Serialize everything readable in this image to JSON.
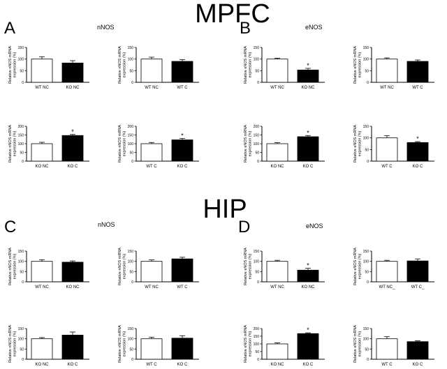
{
  "titles": {
    "top": "MPFC",
    "bottom": "HIP"
  },
  "panels": [
    {
      "letter": "A",
      "gene": "nNOS"
    },
    {
      "letter": "B",
      "gene": "eNOS"
    },
    {
      "letter": "C",
      "gene": "nNOS"
    },
    {
      "letter": "D",
      "gene": "eNOS"
    }
  ],
  "chart_data": [
    {
      "type": "bar",
      "region": "MPFC",
      "panel": "A",
      "ylabel": "Relative nNOS mRNA expression (%)",
      "ylim": [
        0,
        150
      ],
      "yticks": [
        "0",
        "50",
        "100",
        "150"
      ],
      "categories": [
        "WT NC",
        "KO NC"
      ],
      "values": [
        100,
        83
      ],
      "errors": [
        10,
        10
      ],
      "colors": [
        "#ffffff",
        "#000000"
      ],
      "significant": [
        false,
        false
      ]
    },
    {
      "type": "bar",
      "region": "MPFC",
      "panel": "A",
      "ylabel": "Relative nNOS mRNA expression (%)",
      "ylim": [
        0,
        150
      ],
      "yticks": [
        "0",
        "50",
        "100",
        "150"
      ],
      "categories": [
        "WT NC",
        "WT C"
      ],
      "values": [
        100,
        90
      ],
      "errors": [
        8,
        8
      ],
      "colors": [
        "#ffffff",
        "#000000"
      ],
      "significant": [
        false,
        false
      ]
    },
    {
      "type": "bar",
      "region": "MPFC",
      "panel": "A",
      "ylabel": "Relative nNOS mRNA expression (%)",
      "ylim": [
        0,
        200
      ],
      "yticks": [
        "0",
        "50",
        "100",
        "150",
        "200"
      ],
      "categories": [
        "KO NC",
        "KO C"
      ],
      "values": [
        100,
        147
      ],
      "errors": [
        8,
        6
      ],
      "colors": [
        "#ffffff",
        "#000000"
      ],
      "significant": [
        false,
        true
      ]
    },
    {
      "type": "bar",
      "region": "MPFC",
      "panel": "A",
      "ylabel": "Relative nNOS mRNA expression (%)",
      "ylim": [
        0,
        200
      ],
      "yticks": [
        "0",
        "50",
        "100",
        "150",
        "200"
      ],
      "categories": [
        "WT C",
        "KO C"
      ],
      "values": [
        100,
        122
      ],
      "errors": [
        7,
        8
      ],
      "colors": [
        "#ffffff",
        "#000000"
      ],
      "significant": [
        false,
        true
      ]
    },
    {
      "type": "bar",
      "region": "MPFC",
      "panel": "B",
      "ylabel": "Relative eNOS mRNA expression (%)",
      "ylim": [
        0,
        150
      ],
      "yticks": [
        "0",
        "50",
        "100",
        "150"
      ],
      "categories": [
        "WT NC",
        "KO NC"
      ],
      "values": [
        100,
        53
      ],
      "errors": [
        4,
        7
      ],
      "colors": [
        "#ffffff",
        "#000000"
      ],
      "significant": [
        false,
        true
      ]
    },
    {
      "type": "bar",
      "region": "MPFC",
      "panel": "B",
      "ylabel": "Relative eNOS mRNA expression (%)",
      "ylim": [
        0,
        150
      ],
      "yticks": [
        "0",
        "50",
        "100",
        "150"
      ],
      "categories": [
        "WT NC",
        "WT C"
      ],
      "values": [
        100,
        90
      ],
      "errors": [
        5,
        6
      ],
      "colors": [
        "#ffffff",
        "#000000"
      ],
      "significant": [
        false,
        false
      ]
    },
    {
      "type": "bar",
      "region": "MPFC",
      "panel": "B",
      "ylabel": "Relative eNOS mRNA expression (%)",
      "ylim": [
        0,
        200
      ],
      "yticks": [
        "0",
        "50",
        "100",
        "150",
        "200"
      ],
      "categories": [
        "KO NC",
        "KO C"
      ],
      "values": [
        100,
        140
      ],
      "errors": [
        6,
        7
      ],
      "colors": [
        "#ffffff",
        "#000000"
      ],
      "significant": [
        false,
        true
      ]
    },
    {
      "type": "bar",
      "region": "MPFC",
      "panel": "B",
      "ylabel": "Relative eNOS mRNA expression (%)",
      "ylim": [
        0,
        150
      ],
      "yticks": [
        "0",
        "50",
        "100",
        "150"
      ],
      "categories": [
        "WT C",
        "KO C"
      ],
      "values": [
        100,
        80
      ],
      "errors": [
        9,
        4
      ],
      "colors": [
        "#ffffff",
        "#000000"
      ],
      "significant": [
        false,
        true
      ]
    },
    {
      "type": "bar",
      "region": "HIP",
      "panel": "C",
      "ylabel": "Relative nNOS mRNA expression (%)",
      "ylim": [
        0,
        150
      ],
      "yticks": [
        "0",
        "50",
        "100",
        "150"
      ],
      "categories": [
        "WT NC",
        "KO NC"
      ],
      "values": [
        100,
        96
      ],
      "errors": [
        8,
        6
      ],
      "colors": [
        "#ffffff",
        "#000000"
      ],
      "significant": [
        false,
        false
      ]
    },
    {
      "type": "bar",
      "region": "HIP",
      "panel": "C",
      "ylabel": "Relative nNOS mRNA expression (%)",
      "ylim": [
        0,
        150
      ],
      "yticks": [
        "0",
        "50",
        "100",
        "150"
      ],
      "categories": [
        "WT NC",
        "WT C"
      ],
      "values": [
        100,
        112
      ],
      "errors": [
        7,
        8
      ],
      "colors": [
        "#ffffff",
        "#000000"
      ],
      "significant": [
        false,
        false
      ]
    },
    {
      "type": "bar",
      "region": "HIP",
      "panel": "C",
      "ylabel": "Relative nNOS mRNA expression (%)",
      "ylim": [
        0,
        150
      ],
      "yticks": [
        "0",
        "50",
        "100",
        "150"
      ],
      "categories": [
        "KO NC",
        "KO C"
      ],
      "values": [
        100,
        118
      ],
      "errors": [
        6,
        15
      ],
      "colors": [
        "#ffffff",
        "#000000"
      ],
      "significant": [
        false,
        false
      ]
    },
    {
      "type": "bar",
      "region": "HIP",
      "panel": "C",
      "ylabel": "Relative nNOS mRNA expression (%)",
      "ylim": [
        0,
        150
      ],
      "yticks": [
        "0",
        "50",
        "100",
        "150"
      ],
      "categories": [
        "WT C",
        "KO C"
      ],
      "values": [
        100,
        103
      ],
      "errors": [
        8,
        12
      ],
      "colors": [
        "#ffffff",
        "#000000"
      ],
      "significant": [
        false,
        false
      ]
    },
    {
      "type": "bar",
      "region": "HIP",
      "panel": "D",
      "ylabel": "Relative eNOS mRNA expression (%)",
      "ylim": [
        0,
        150
      ],
      "yticks": [
        "0",
        "50",
        "100",
        "150"
      ],
      "categories": [
        "WT NC",
        "KO NC"
      ],
      "values": [
        100,
        57
      ],
      "errors": [
        5,
        9
      ],
      "colors": [
        "#ffffff",
        "#000000"
      ],
      "significant": [
        false,
        true
      ]
    },
    {
      "type": "bar",
      "region": "HIP",
      "panel": "D",
      "ylabel": "Relative eNOS mRNA expression (%)",
      "ylim": [
        0,
        150
      ],
      "yticks": [
        "0",
        "50",
        "100",
        "150"
      ],
      "categories": [
        "WT NC_",
        "WT C_"
      ],
      "values": [
        100,
        102
      ],
      "errors": [
        5,
        10
      ],
      "colors": [
        "#ffffff",
        "#000000"
      ],
      "significant": [
        false,
        false
      ]
    },
    {
      "type": "bar",
      "region": "HIP",
      "panel": "D",
      "ylabel": "Relative eNOS mRNA expression (%)",
      "ylim": [
        0,
        200
      ],
      "yticks": [
        "0",
        "50",
        "100",
        "150",
        "200"
      ],
      "categories": [
        "KO NC",
        "KO C"
      ],
      "values": [
        100,
        167
      ],
      "errors": [
        7,
        5
      ],
      "colors": [
        "#ffffff",
        "#000000"
      ],
      "significant": [
        false,
        true
      ]
    },
    {
      "type": "bar",
      "region": "HIP",
      "panel": "D",
      "ylabel": "Relative eNOS mRNA expression (%)",
      "ylim": [
        0,
        150
      ],
      "yticks": [
        "0",
        "50",
        "100",
        "150"
      ],
      "categories": [
        "WT C",
        "KO C"
      ],
      "values": [
        100,
        86
      ],
      "errors": [
        10,
        4
      ],
      "colors": [
        "#ffffff",
        "#000000"
      ],
      "significant": [
        false,
        false
      ]
    }
  ]
}
